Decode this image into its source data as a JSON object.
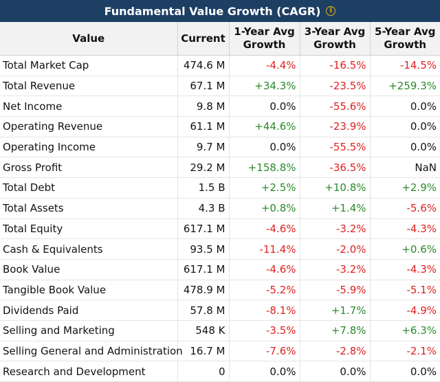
{
  "title": "Fundamental Value Growth (CAGR)",
  "info_icon": "i",
  "colors": {
    "header_bg": "#1d3f64",
    "negative": "#e02020",
    "positive": "#2a8a2a",
    "neutral": "#111111"
  },
  "columns": [
    "Value",
    "Current",
    "1-Year Avg Growth",
    "3-Year Avg Growth",
    "5-Year Avg Growth"
  ],
  "rows": [
    [
      "Total Market Cap",
      "474.6 M",
      "-4.4%",
      "-16.5%",
      "-14.5%"
    ],
    [
      "Total Revenue",
      "67.1 M",
      "+34.3%",
      "-23.5%",
      "+259.3%"
    ],
    [
      "Net Income",
      "9.8 M",
      "0.0%",
      "-55.6%",
      "0.0%"
    ],
    [
      "Operating Revenue",
      "61.1 M",
      "+44.6%",
      "-23.9%",
      "0.0%"
    ],
    [
      "Operating Income",
      "9.7 M",
      "0.0%",
      "-55.5%",
      "0.0%"
    ],
    [
      "Gross Profit",
      "29.2 M",
      "+158.8%",
      "-36.5%",
      "NaN"
    ],
    [
      "Total Debt",
      "1.5 B",
      "+2.5%",
      "+10.8%",
      "+2.9%"
    ],
    [
      "Total Assets",
      "4.3 B",
      "+0.8%",
      "+1.4%",
      "-5.6%"
    ],
    [
      "Total Equity",
      "617.1 M",
      "-4.6%",
      "-3.2%",
      "-4.3%"
    ],
    [
      "Cash & Equivalents",
      "93.5 M",
      "-11.4%",
      "-2.0%",
      "+0.6%"
    ],
    [
      "Book Value",
      "617.1 M",
      "-4.6%",
      "-3.2%",
      "-4.3%"
    ],
    [
      "Tangible Book Value",
      "478.9 M",
      "-5.2%",
      "-5.9%",
      "-5.1%"
    ],
    [
      "Dividends Paid",
      "57.8 M",
      "-8.1%",
      "+1.7%",
      "-4.9%"
    ],
    [
      "Selling and Marketing",
      "548 K",
      "-3.5%",
      "+7.8%",
      "+6.3%"
    ],
    [
      "Selling General and Administration",
      "16.7 M",
      "-7.6%",
      "-2.8%",
      "-2.1%"
    ],
    [
      "Research and Development",
      "0",
      "0.0%",
      "0.0%",
      "0.0%"
    ]
  ]
}
